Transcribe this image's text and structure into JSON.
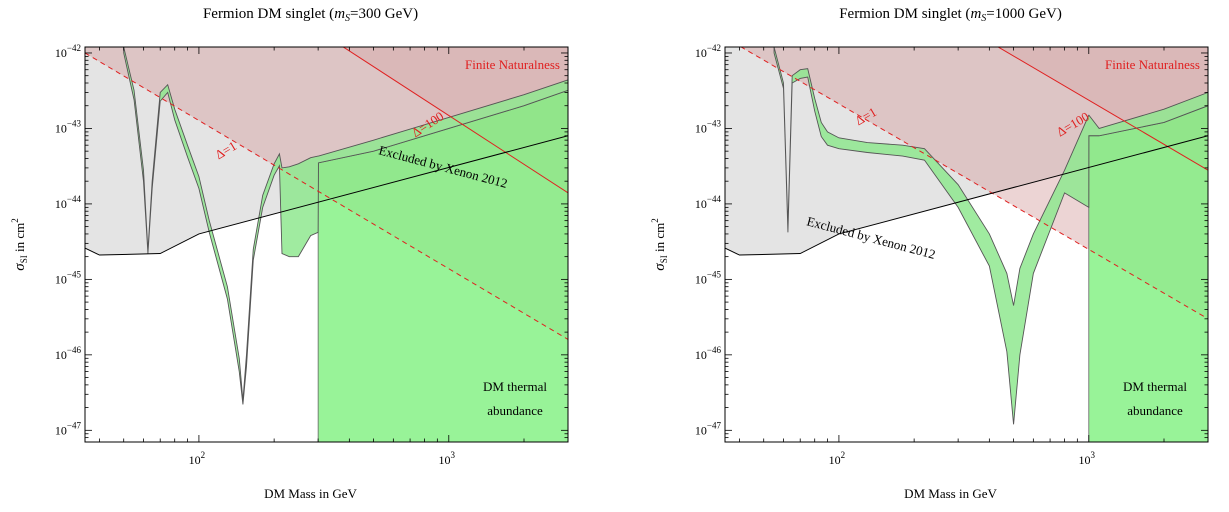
{
  "chart_data": [
    {
      "type": "area",
      "title_prefix": "Fermion DM singlet (",
      "title_var": "m",
      "title_sub": "S",
      "title_value": "=300 GeV)",
      "xlabel": "DM Mass in GeV",
      "ylabel_main": "σ",
      "ylabel_sub": "SI",
      "ylabel_rest": " in cm",
      "ylabel_sup": "2",
      "xscale": "log",
      "yscale": "log",
      "xlim": [
        35,
        3000
      ],
      "ylim": [
        7e-48,
        1.2e-42
      ],
      "x_ticks": [
        {
          "base": "10",
          "exp": "2",
          "value": 100
        },
        {
          "base": "10",
          "exp": "3",
          "value": 1000
        }
      ],
      "y_ticks": [
        {
          "base": "10",
          "exp": "−42",
          "value": 1e-42
        },
        {
          "base": "10",
          "exp": "−43",
          "value": 1e-43
        },
        {
          "base": "10",
          "exp": "−44",
          "value": 1e-44
        },
        {
          "base": "10",
          "exp": "−45",
          "value": 1e-45
        },
        {
          "base": "10",
          "exp": "−46",
          "value": 1e-46
        },
        {
          "base": "10",
          "exp": "−47",
          "value": 1e-47
        }
      ],
      "annotations": {
        "finite_naturalness": "Finite Naturalness",
        "delta_100": "Δ=100",
        "delta_1": "Δ=1",
        "xenon": "Excluded by Xenon 2012",
        "thermal_line1": "DM thermal",
        "thermal_line2": "abundance"
      },
      "colors": {
        "naturalness": "#d4a0a0",
        "xenon": "#e4e4e4",
        "thermal": "#7ef07e",
        "band": "#8fe88f",
        "delta_line": "#e02020",
        "xenon_line": "#000000"
      },
      "delta100_line": {
        "x": [
          35,
          3000
        ],
        "y": [
          2e-40,
          1.4e-44
        ]
      },
      "delta1_line": {
        "x": [
          35,
          3000
        ],
        "y": [
          1e-42,
          1.6e-46
        ]
      },
      "xenon_limit": {
        "x": [
          35,
          40,
          70,
          100,
          3000
        ],
        "y": [
          2.6e-45,
          2.1e-45,
          2.2e-45,
          4e-45,
          8e-44
        ]
      },
      "thermal_region": {
        "x_min": 300,
        "y_floor": 7e-48
      },
      "relic_band": {
        "x": [
          50,
          55,
          60,
          62.5,
          65,
          70,
          75,
          80,
          90,
          100,
          110,
          130,
          145,
          150,
          155,
          165,
          180,
          200,
          210,
          215,
          230,
          250,
          280,
          300,
          301,
          500,
          1000,
          2000,
          3000
        ],
        "upper": [
          1.2e-42,
          3.2e-43,
          2.8e-44,
          2.4e-45,
          2e-44,
          3e-43,
          3.8e-43,
          1.8e-43,
          6e-44,
          2.3e-44,
          6e-45,
          8e-46,
          9e-47,
          2.5e-47,
          1e-46,
          2.5e-45,
          1.3e-44,
          3.4e-44,
          4.6e-44,
          3e-44,
          3.1e-44,
          3.4e-44,
          4.1e-44,
          4.3e-44,
          4.3e-44,
          7e-44,
          1.4e-43,
          2.8e-43,
          4.4e-43
        ],
        "lower": [
          1e-42,
          2.4e-43,
          2e-44,
          2.2e-45,
          1.6e-44,
          2.3e-43,
          3e-43,
          1.3e-43,
          4.2e-44,
          1.6e-44,
          4.2e-45,
          5.5e-46,
          6e-47,
          2.2e-47,
          7e-47,
          1.8e-45,
          9e-45,
          2.4e-44,
          3.2e-44,
          2.2e-45,
          2e-45,
          2e-45,
          3.8e-45,
          4.2e-45,
          3.5e-44,
          5e-44,
          1e-43,
          2e-43,
          3.2e-43
        ]
      }
    },
    {
      "type": "area",
      "title_prefix": "Fermion DM singlet (",
      "title_var": "m",
      "title_sub": "S",
      "title_value": "=1000 GeV)",
      "xlabel": "DM Mass in GeV",
      "ylabel_main": "σ",
      "ylabel_sub": "SI",
      "ylabel_rest": " in cm",
      "ylabel_sup": "2",
      "xscale": "log",
      "yscale": "log",
      "xlim": [
        35,
        3000
      ],
      "ylim": [
        7e-48,
        1.2e-42
      ],
      "x_ticks": [
        {
          "base": "10",
          "exp": "2",
          "value": 100
        },
        {
          "base": "10",
          "exp": "3",
          "value": 1000
        }
      ],
      "y_ticks": [
        {
          "base": "10",
          "exp": "−42",
          "value": 1e-42
        },
        {
          "base": "10",
          "exp": "−43",
          "value": 1e-43
        },
        {
          "base": "10",
          "exp": "−44",
          "value": 1e-44
        },
        {
          "base": "10",
          "exp": "−45",
          "value": 1e-45
        },
        {
          "base": "10",
          "exp": "−46",
          "value": 1e-46
        },
        {
          "base": "10",
          "exp": "−47",
          "value": 1e-47
        }
      ],
      "annotations": {
        "finite_naturalness": "Finite Naturalness",
        "delta_100": "Δ=100",
        "delta_1": "Δ=1",
        "xenon": "Excluded by Xenon 2012",
        "thermal_line1": "DM thermal",
        "thermal_line2": "abundance"
      },
      "colors": {
        "naturalness": "#d4a0a0",
        "xenon": "#e4e4e4",
        "thermal": "#7ef07e",
        "band": "#8fe88f",
        "delta_line": "#e02020",
        "xenon_line": "#000000"
      },
      "delta100_line": {
        "x": [
          35,
          3000
        ],
        "y": [
          1.6e-40,
          2.8e-44
        ]
      },
      "delta1_line": {
        "x": [
          35,
          3000
        ],
        "y": [
          1.6e-42,
          3e-46
        ]
      },
      "xenon_limit": {
        "x": [
          35,
          40,
          70,
          100,
          3000
        ],
        "y": [
          2.6e-45,
          2.1e-45,
          2.2e-45,
          4e-45,
          8e-44
        ]
      },
      "thermal_region": {
        "x_min": 1000,
        "y_floor": 7e-48
      },
      "relic_band": {
        "x": [
          55,
          60,
          62.5,
          65,
          70,
          75,
          80,
          85,
          90,
          100,
          130,
          180,
          220,
          300,
          400,
          470,
          500,
          530,
          600,
          800,
          1000,
          1001,
          1100,
          2000,
          3000
        ],
        "upper": [
          1.2e-42,
          4e-43,
          5e-45,
          5e-43,
          6e-43,
          6.2e-43,
          2.5e-43,
          1.2e-43,
          9e-44,
          7.5e-44,
          6.5e-44,
          6e-44,
          5.4e-44,
          1.8e-44,
          4e-45,
          1.2e-45,
          4.5e-46,
          1.4e-45,
          4e-45,
          2.8e-44,
          1.5e-43,
          1.5e-43,
          1e-43,
          1.8e-43,
          3e-43
        ],
        "lower": [
          1e-42,
          3.4e-43,
          4.2e-45,
          4e-43,
          4.6e-43,
          4.8e-43,
          1.7e-43,
          7.8e-44,
          6e-44,
          5.4e-44,
          4.8e-44,
          4.3e-44,
          3.8e-44,
          9e-45,
          1.5e-45,
          1.1e-46,
          1.2e-47,
          1e-46,
          1.2e-45,
          1.4e-44,
          9e-45,
          8e-44,
          8e-44,
          1.2e-43,
          2e-43
        ]
      }
    }
  ]
}
